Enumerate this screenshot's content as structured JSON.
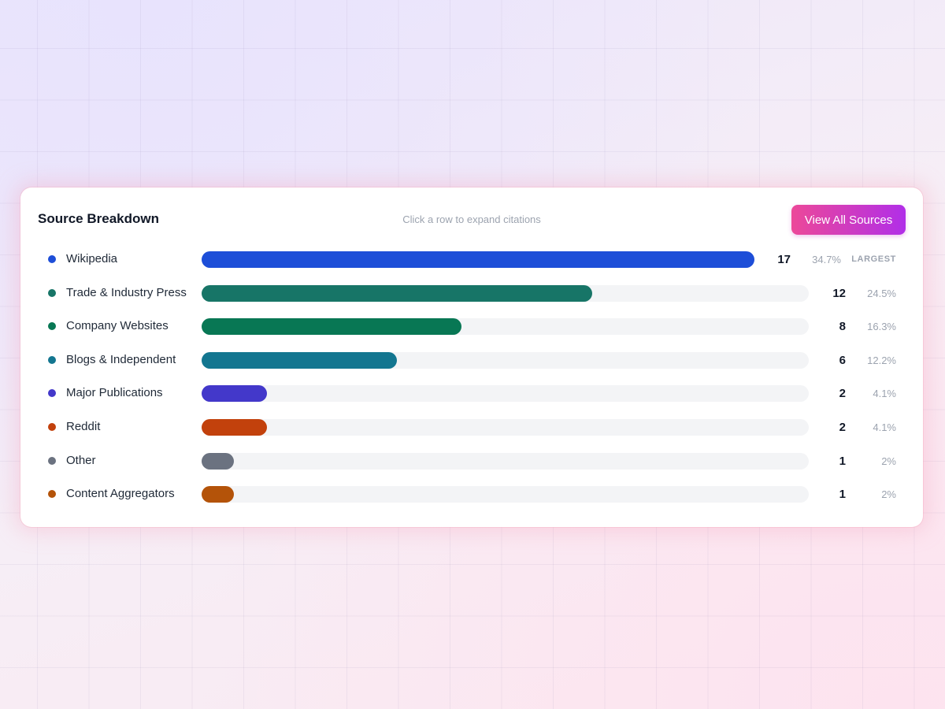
{
  "card": {
    "title": "Source Breakdown",
    "hint": "Click a row to expand citations",
    "button_label": "View All Sources"
  },
  "max_count": 17,
  "rows": [
    {
      "label": "Wikipedia",
      "count": "17",
      "value": 17,
      "pct": "34.7%",
      "color": "#1d4ed8",
      "badge": "LARGEST"
    },
    {
      "label": "Trade & Industry Press",
      "count": "12",
      "value": 12,
      "pct": "24.5%",
      "color": "#177567",
      "badge": ""
    },
    {
      "label": "Company Websites",
      "count": "8",
      "value": 8,
      "pct": "16.3%",
      "color": "#087754",
      "badge": ""
    },
    {
      "label": "Blogs & Independent",
      "count": "6",
      "value": 6,
      "pct": "12.2%",
      "color": "#137690",
      "badge": ""
    },
    {
      "label": "Major Publications",
      "count": "2",
      "value": 2,
      "pct": "4.1%",
      "color": "#4338ca",
      "badge": ""
    },
    {
      "label": "Reddit",
      "count": "2",
      "value": 2,
      "pct": "4.1%",
      "color": "#c2410c",
      "badge": ""
    },
    {
      "label": "Other",
      "count": "1",
      "value": 1,
      "pct": "2%",
      "color": "#6b7280",
      "badge": ""
    },
    {
      "label": "Content Aggregators",
      "count": "1",
      "value": 1,
      "pct": "2%",
      "color": "#b45309",
      "badge": ""
    }
  ]
}
